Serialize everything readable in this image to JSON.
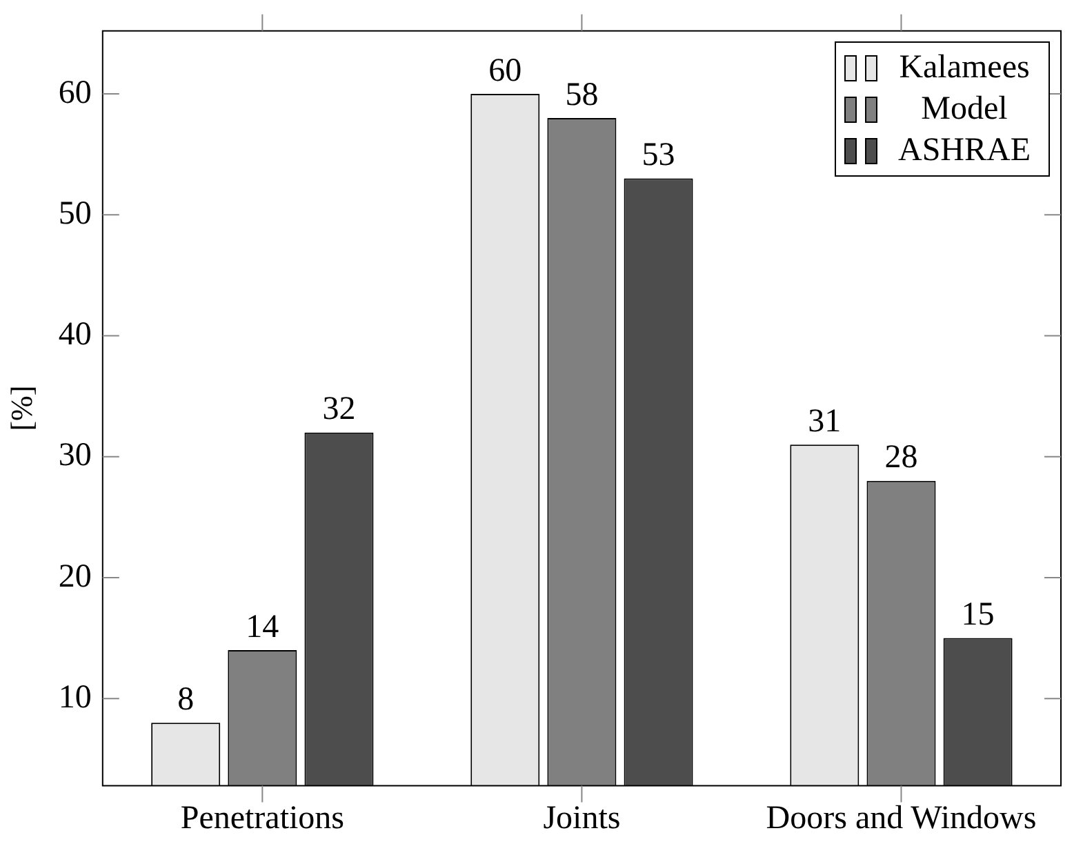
{
  "chart_data": {
    "type": "bar",
    "ylabel": "[%]",
    "categories": [
      "Penetrations",
      "Joints",
      "Doors and Windows"
    ],
    "series": [
      {
        "name": "Kalamees",
        "color": "#e6e6e6",
        "values": [
          8,
          60,
          31
        ]
      },
      {
        "name": "Model",
        "color": "#808080",
        "values": [
          14,
          58,
          28
        ]
      },
      {
        "name": "ASHRAE",
        "color": "#4d4d4d",
        "values": [
          32,
          53,
          15
        ]
      }
    ],
    "ylim": [
      2.8,
      65.2
    ],
    "yticks": [
      10,
      20,
      30,
      40,
      50,
      60
    ],
    "data_labels": true,
    "legend": "top right",
    "grid": false
  }
}
